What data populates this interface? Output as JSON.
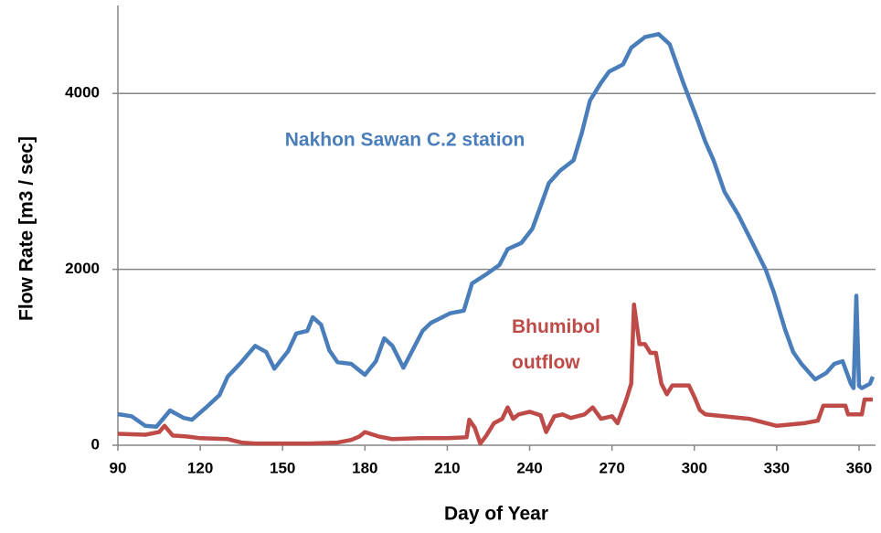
{
  "chart_data": {
    "type": "line",
    "x_label": "Day of Year",
    "y_label": "Flow Rate [m3 / sec]",
    "xlim": [
      90,
      366
    ],
    "ylim": [
      0,
      5000
    ],
    "xticks": [
      90,
      120,
      150,
      180,
      210,
      240,
      270,
      300,
      330,
      360
    ],
    "yticks": [
      0,
      2000,
      4000
    ],
    "grid": true,
    "series": [
      {
        "name": "Nakhon Sawan C.2 station",
        "color": "#4a7ebb",
        "x": [
          90,
          95,
          100,
          104,
          109,
          114,
          117,
          122,
          127,
          130,
          135,
          140,
          144,
          147,
          152,
          155,
          159,
          161,
          164,
          167,
          170,
          175,
          180,
          184,
          187,
          190,
          194,
          197,
          201,
          204,
          211,
          216,
          219,
          224,
          229,
          232,
          237,
          241,
          244,
          247,
          251,
          256,
          259,
          262,
          266,
          269,
          274,
          277,
          282,
          287,
          291,
          296,
          301,
          304,
          307,
          311,
          316,
          321,
          326,
          329,
          333,
          336,
          339,
          344,
          348,
          351,
          354,
          357,
          358,
          359,
          360,
          361,
          364,
          365
        ],
        "values": [
          353,
          330,
          220,
          210,
          395,
          310,
          290,
          425,
          570,
          780,
          945,
          1130,
          1060,
          870,
          1070,
          1270,
          1300,
          1455,
          1370,
          1080,
          945,
          925,
          800,
          955,
          1215,
          1130,
          880,
          1060,
          1300,
          1390,
          1500,
          1530,
          1840,
          1940,
          2050,
          2230,
          2300,
          2460,
          2720,
          2980,
          3120,
          3240,
          3550,
          3920,
          4120,
          4250,
          4330,
          4520,
          4640,
          4675,
          4560,
          4120,
          3710,
          3450,
          3240,
          2880,
          2620,
          2310,
          1995,
          1735,
          1320,
          1060,
          925,
          750,
          820,
          925,
          955,
          700,
          650,
          1700,
          675,
          650,
          700,
          780
        ]
      },
      {
        "name": "Bhumibol outflow",
        "color": "#be4b48",
        "x": [
          90,
          100,
          105,
          107,
          110,
          115,
          120,
          130,
          135,
          140,
          160,
          170,
          175,
          178,
          180,
          185,
          190,
          200,
          210,
          217,
          218,
          220,
          222,
          224,
          227,
          230,
          232,
          234,
          236,
          240,
          244,
          246,
          249,
          252,
          255,
          260,
          263,
          266,
          270,
          272,
          275,
          277,
          278,
          280,
          282,
          284,
          286,
          288,
          290,
          292,
          298,
          300,
          302,
          304,
          320,
          330,
          340,
          345,
          347,
          355,
          356,
          361,
          362,
          365
        ],
        "values": [
          130,
          120,
          150,
          220,
          110,
          100,
          80,
          70,
          30,
          20,
          20,
          30,
          60,
          100,
          150,
          100,
          70,
          80,
          80,
          90,
          290,
          200,
          20,
          100,
          250,
          300,
          430,
          300,
          350,
          380,
          340,
          150,
          330,
          350,
          310,
          350,
          430,
          300,
          330,
          250,
          500,
          700,
          1600,
          1150,
          1150,
          1050,
          1050,
          700,
          580,
          680,
          680,
          550,
          400,
          350,
          300,
          220,
          250,
          280,
          450,
          450,
          350,
          350,
          520,
          520
        ]
      }
    ]
  }
}
